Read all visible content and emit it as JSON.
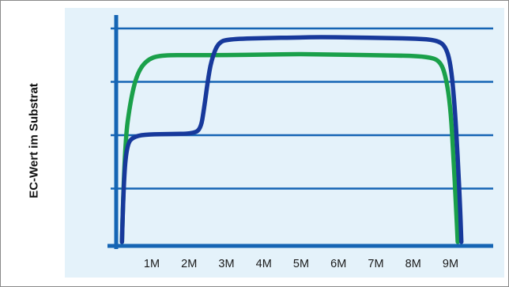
{
  "chart_data": {
    "type": "line",
    "title": "",
    "xlabel": "",
    "ylabel": "EC-Wert im Substrat",
    "x_tick_labels": [
      "1M",
      "2M",
      "3M",
      "4M",
      "5M",
      "6M",
      "7M",
      "8M",
      "9M"
    ],
    "xlim": [
      0,
      10
    ],
    "ylim": [
      0,
      4
    ],
    "y_tick_labels_shown": false,
    "grid": "horizontal",
    "colors": {
      "background": "#e4f2fa",
      "axis": "#1565b4",
      "grid": "#1565b4"
    },
    "series": [
      {
        "color": "#1aa04a",
        "points": [
          [
            0.05,
            0.0
          ],
          [
            0.12,
            1.8
          ],
          [
            0.3,
            2.7
          ],
          [
            0.5,
            3.2
          ],
          [
            0.8,
            3.44
          ],
          [
            1.2,
            3.5
          ],
          [
            2.0,
            3.5
          ],
          [
            3.0,
            3.5
          ],
          [
            4.0,
            3.51
          ],
          [
            5.0,
            3.52
          ],
          [
            6.0,
            3.51
          ],
          [
            7.0,
            3.5
          ],
          [
            8.0,
            3.49
          ],
          [
            8.6,
            3.47
          ],
          [
            8.95,
            3.4
          ],
          [
            9.12,
            3.1
          ],
          [
            9.25,
            2.5
          ],
          [
            9.33,
            1.6
          ],
          [
            9.4,
            0.7
          ],
          [
            9.45,
            0.0
          ]
        ]
      },
      {
        "color": "#17399b",
        "points": [
          [
            0.05,
            0.0
          ],
          [
            0.1,
            1.2
          ],
          [
            0.2,
            1.85
          ],
          [
            0.4,
            1.98
          ],
          [
            0.8,
            2.02
          ],
          [
            1.4,
            2.02
          ],
          [
            2.0,
            2.03
          ],
          [
            2.25,
            2.1
          ],
          [
            2.35,
            2.5
          ],
          [
            2.45,
            3.0
          ],
          [
            2.55,
            3.4
          ],
          [
            2.75,
            3.75
          ],
          [
            3.1,
            3.8
          ],
          [
            4.0,
            3.82
          ],
          [
            5.0,
            3.83
          ],
          [
            5.6,
            3.84
          ],
          [
            6.5,
            3.83
          ],
          [
            7.5,
            3.82
          ],
          [
            8.3,
            3.81
          ],
          [
            8.85,
            3.78
          ],
          [
            9.1,
            3.68
          ],
          [
            9.25,
            3.35
          ],
          [
            9.36,
            2.6
          ],
          [
            9.45,
            1.6
          ],
          [
            9.52,
            0.6
          ],
          [
            9.55,
            0.0
          ]
        ]
      }
    ]
  }
}
